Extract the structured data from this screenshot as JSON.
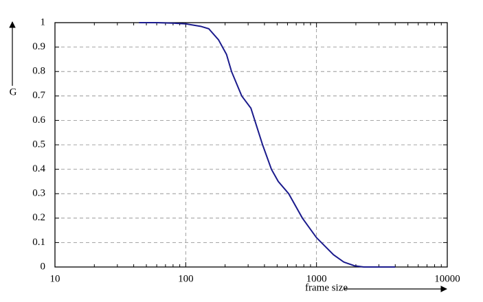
{
  "chart_data": {
    "type": "line",
    "xlabel": "frame size",
    "ylabel": "G",
    "x": [
      44,
      60,
      80,
      100,
      130,
      150,
      178,
      205,
      224,
      268,
      315,
      387,
      452,
      510,
      613,
      780,
      1000,
      1350,
      1620,
      1950,
      2300,
      3000,
      4000
    ],
    "series": [
      {
        "name": "G",
        "color": "#1a1a8c",
        "values": [
          1,
          1,
          0.998,
          0.995,
          0.985,
          0.975,
          0.93,
          0.87,
          0.8,
          0.7,
          0.65,
          0.5,
          0.4,
          0.35,
          0.3,
          0.2,
          0.12,
          0.05,
          0.02,
          0.005,
          0,
          0,
          0
        ]
      }
    ],
    "xlim": [
      10,
      10000
    ],
    "xticks": [
      10,
      100,
      1000,
      10000
    ],
    "xscale": "log",
    "ylim": [
      0,
      1
    ],
    "yticks": [
      0,
      0.1,
      0.2,
      0.3,
      0.4,
      0.5,
      0.6,
      0.7,
      0.8,
      0.9,
      1
    ],
    "grid": true
  }
}
